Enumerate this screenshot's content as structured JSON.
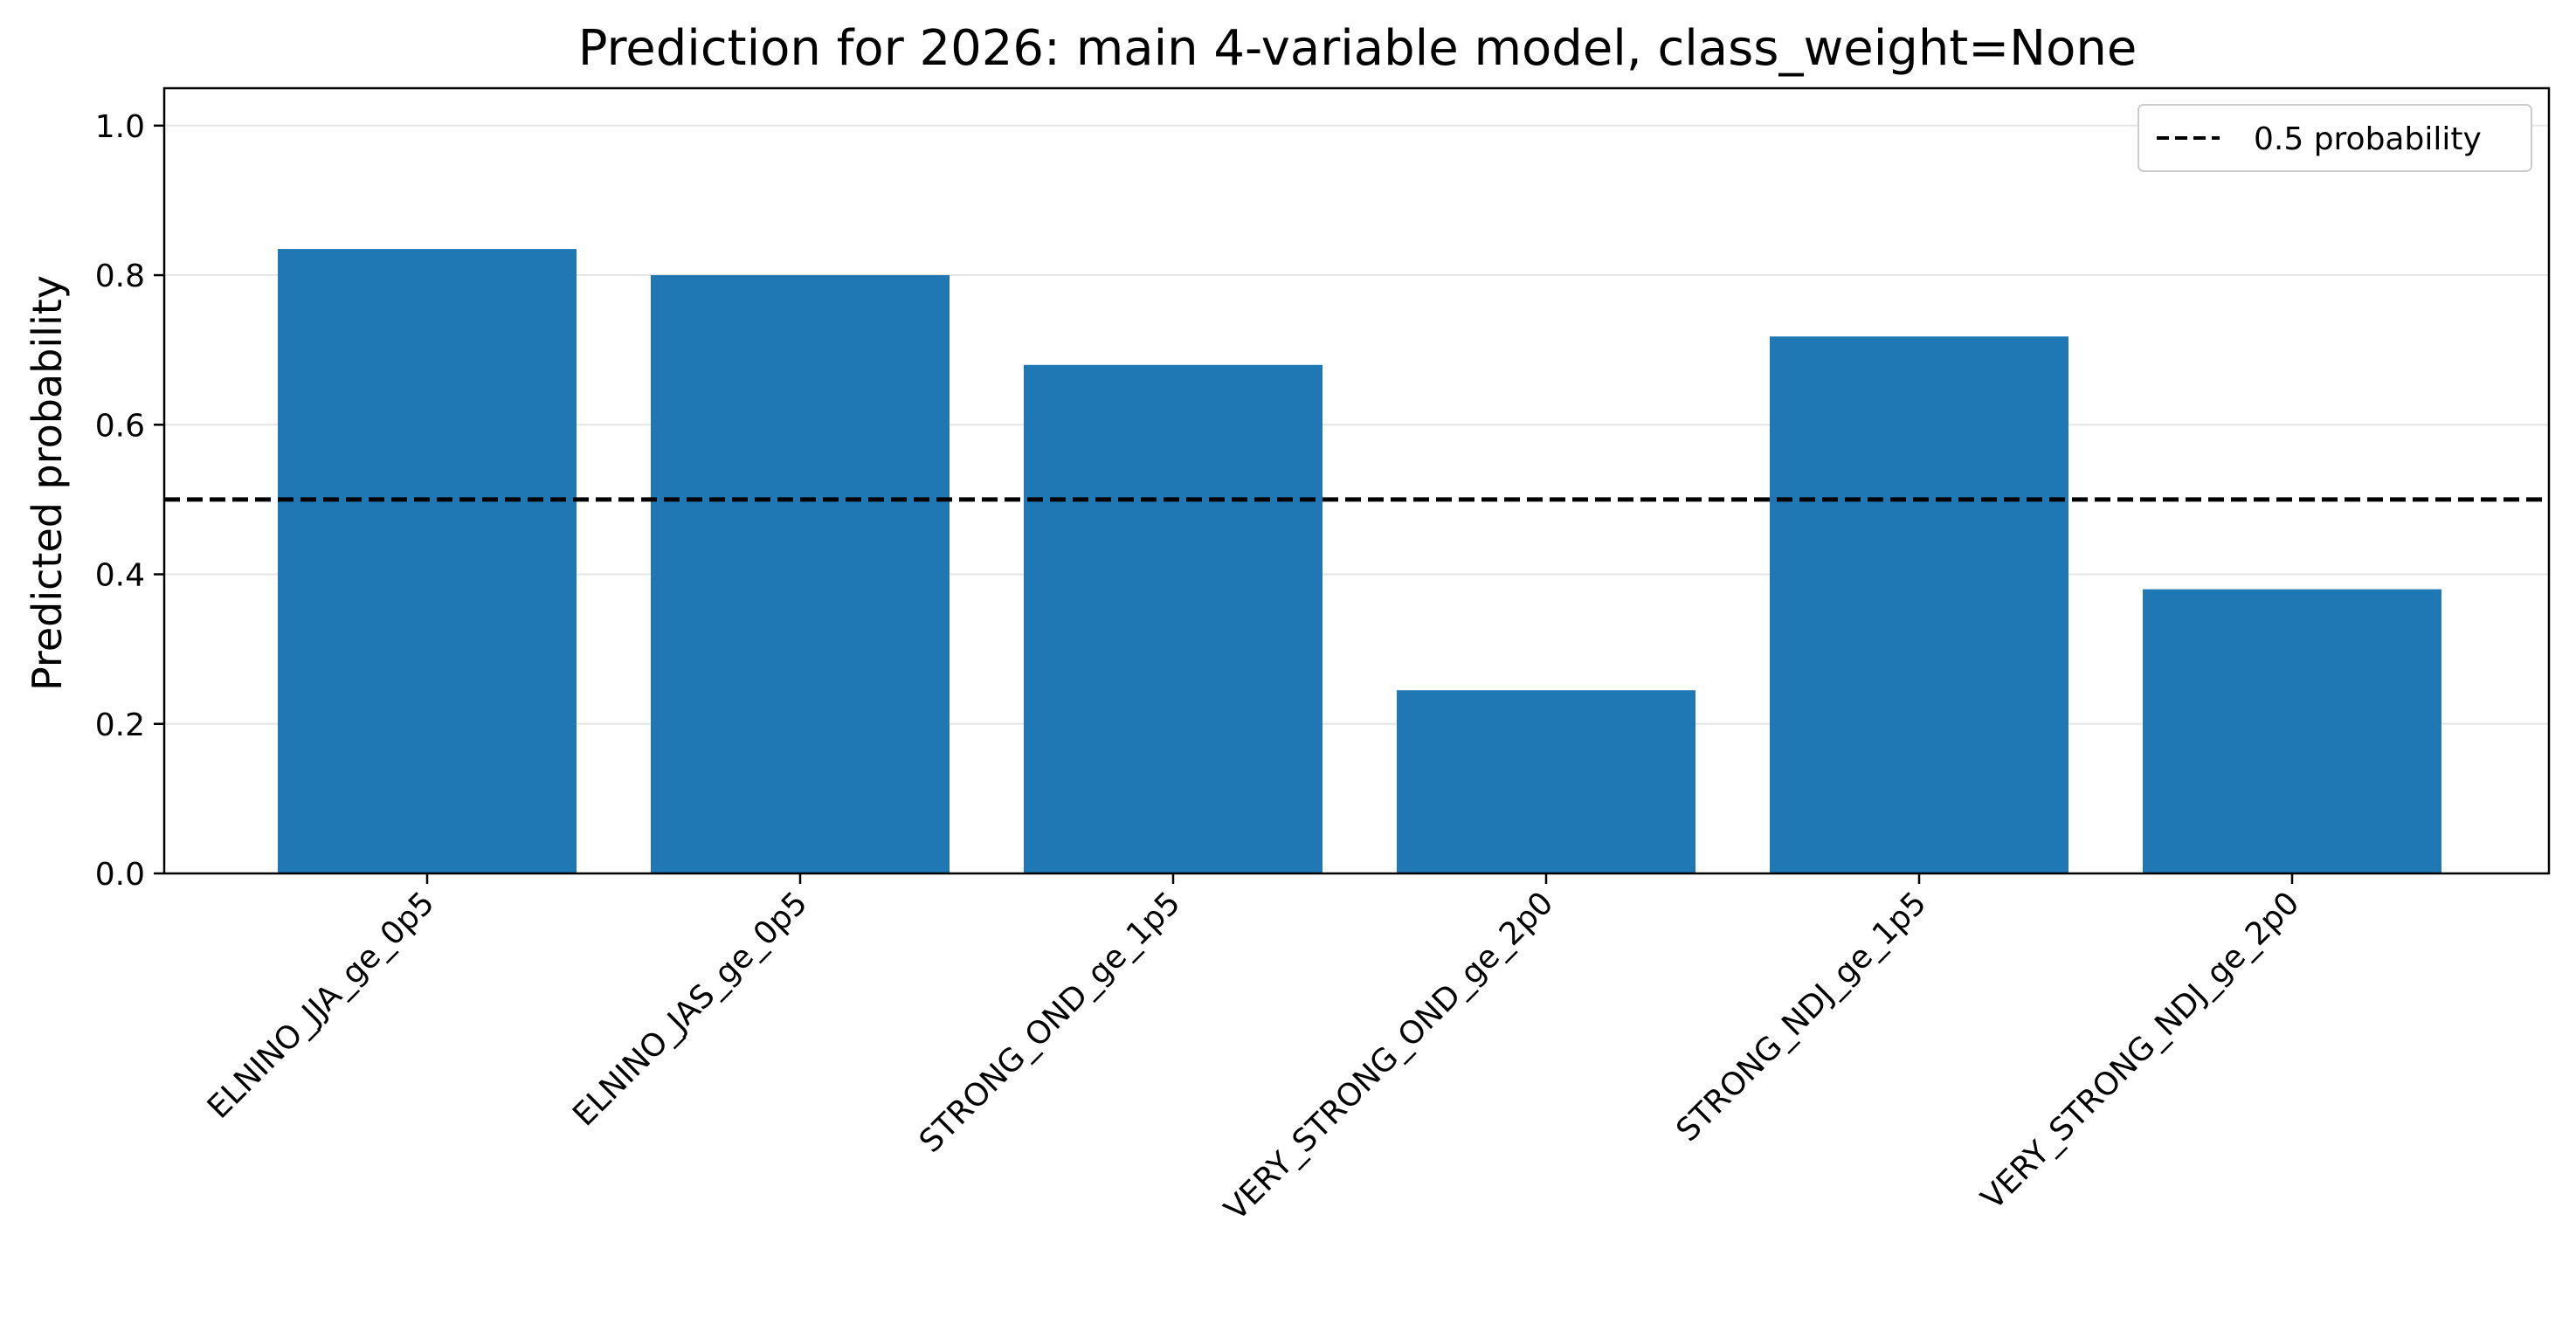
{
  "chart_data": {
    "type": "bar",
    "title": "Prediction for 2026: main 4-variable model, class_weight=None",
    "xlabel": "",
    "ylabel": "Predicted probability",
    "categories": [
      "ELNINO_JJA_ge_0p5",
      "ELNINO_JAS_ge_0p5",
      "STRONG_OND_ge_1p5",
      "VERY_STRONG_OND_ge_2p0",
      "STRONG_NDJ_ge_1p5",
      "VERY_STRONG_NDJ_ge_2p0"
    ],
    "values": [
      0.835,
      0.8,
      0.68,
      0.245,
      0.718,
      0.38
    ],
    "ylim": [
      0.0,
      1.05
    ],
    "yticks": [
      "0.0",
      "0.2",
      "0.4",
      "0.6",
      "0.8",
      "1.0"
    ],
    "reference_line": {
      "value": 0.5,
      "style": "dashed",
      "label": "0.5 probability"
    },
    "grid": "horizontal",
    "legend_position": "top-right",
    "colors": {
      "bar": "#1f77b4",
      "reference_line": "#000000",
      "grid": "#e6e6e6",
      "axes": "#000000"
    }
  }
}
